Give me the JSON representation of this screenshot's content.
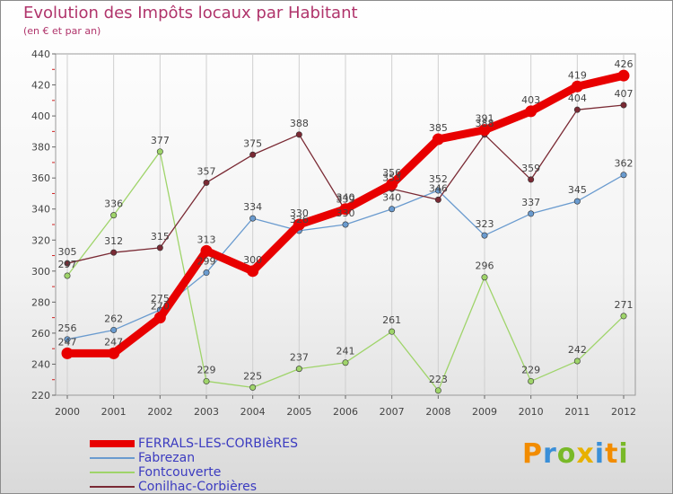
{
  "title": "Evolution des Impôts locaux par Habitant",
  "subtitle": "(en € et par an)",
  "logo": {
    "letters": [
      "P",
      "r",
      "o",
      "x",
      "i",
      "t",
      "i"
    ],
    "colors": [
      "#f28c00",
      "#3a8fd8",
      "#79b928",
      "#e8b100",
      "#3a8fd8",
      "#f28c00",
      "#79b928"
    ]
  },
  "chart_data": {
    "type": "line",
    "title": "Evolution des Impôts locaux par Habitant",
    "ylabel": "(en € et par an)",
    "xlabel": "",
    "categories": [
      "2000",
      "2001",
      "2002",
      "2003",
      "2004",
      "2005",
      "2006",
      "2007",
      "2008",
      "2009",
      "2010",
      "2011",
      "2012"
    ],
    "ylim": [
      220,
      440
    ],
    "yticks": [
      "220",
      "240",
      "260",
      "280",
      "300",
      "320",
      "340",
      "360",
      "380",
      "400",
      "420",
      "440"
    ],
    "series": [
      {
        "name": "FERRALS-LES-CORBIèRES",
        "color": "#e80000",
        "width": 9,
        "values": [
          247,
          247,
          270,
          313,
          300,
          330,
          340,
          356,
          385,
          391,
          403,
          419,
          426
        ],
        "labels": [
          "247",
          "247",
          "270",
          "313",
          "300",
          "330",
          "340",
          "356",
          "385",
          "391",
          "403",
          "419",
          "426"
        ]
      },
      {
        "name": "Fabrezan",
        "color": "#6a9bcf",
        "width": 1.3,
        "values": [
          256,
          262,
          275,
          299,
          334,
          326,
          330,
          340,
          352,
          323,
          337,
          345,
          362
        ],
        "labels": [
          "256",
          "262",
          "275",
          "299",
          "334",
          "326",
          "330",
          "340",
          "352",
          "323",
          "337",
          "345",
          "362"
        ]
      },
      {
        "name": "Fontcouverte",
        "color": "#9fd46a",
        "width": 1.3,
        "values": [
          297,
          336,
          377,
          229,
          225,
          237,
          241,
          261,
          223,
          296,
          229,
          242,
          271
        ],
        "labels": [
          "297",
          "336",
          "377",
          "229",
          "225",
          "237",
          "241",
          "261",
          "223",
          "296",
          "229",
          "242",
          "271"
        ]
      },
      {
        "name": "Conilhac-Corbières",
        "color": "#7a2a34",
        "width": 1.3,
        "values": [
          305,
          312,
          315,
          357,
          375,
          388,
          339,
          353,
          346,
          388,
          359,
          404,
          407
        ],
        "labels": [
          "305",
          "312",
          "315",
          "357",
          "375",
          "388",
          "339",
          "353",
          "346",
          "388",
          "359",
          "404",
          "407"
        ]
      }
    ]
  }
}
